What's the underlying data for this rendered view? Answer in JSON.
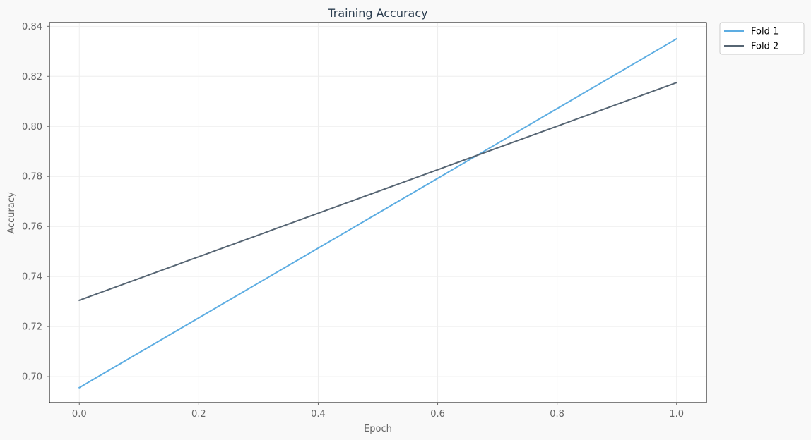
{
  "chart_data": {
    "type": "line",
    "title": "Training Accuracy",
    "xlabel": "Epoch",
    "ylabel": "Accuracy",
    "xlim": [
      -0.05,
      1.05
    ],
    "ylim": [
      0.6896,
      0.8415
    ],
    "xticks": [
      0.0,
      0.2,
      0.4,
      0.6,
      0.8,
      1.0
    ],
    "xtick_labels": [
      "0.0",
      "0.2",
      "0.4",
      "0.6",
      "0.8",
      "1.0"
    ],
    "yticks": [
      0.7,
      0.72,
      0.74,
      0.76,
      0.78,
      0.8,
      0.82,
      0.84
    ],
    "ytick_labels": [
      "0.70",
      "0.72",
      "0.74",
      "0.76",
      "0.78",
      "0.80",
      "0.82",
      "0.84"
    ],
    "grid": true,
    "legend_position": "outside-top-right",
    "series": [
      {
        "name": "Fold 1",
        "color": "#5dade2",
        "x": [
          0,
          1
        ],
        "y": [
          0.6956,
          0.835
        ]
      },
      {
        "name": "Fold 2",
        "color": "#566573",
        "x": [
          0,
          1
        ],
        "y": [
          0.7305,
          0.8175
        ]
      }
    ]
  },
  "colors": {
    "background": "#f9f9f9",
    "plot_background": "#ffffff",
    "title": "#2c3e50",
    "axis_text": "#666666",
    "grid": "#eeeeee"
  }
}
